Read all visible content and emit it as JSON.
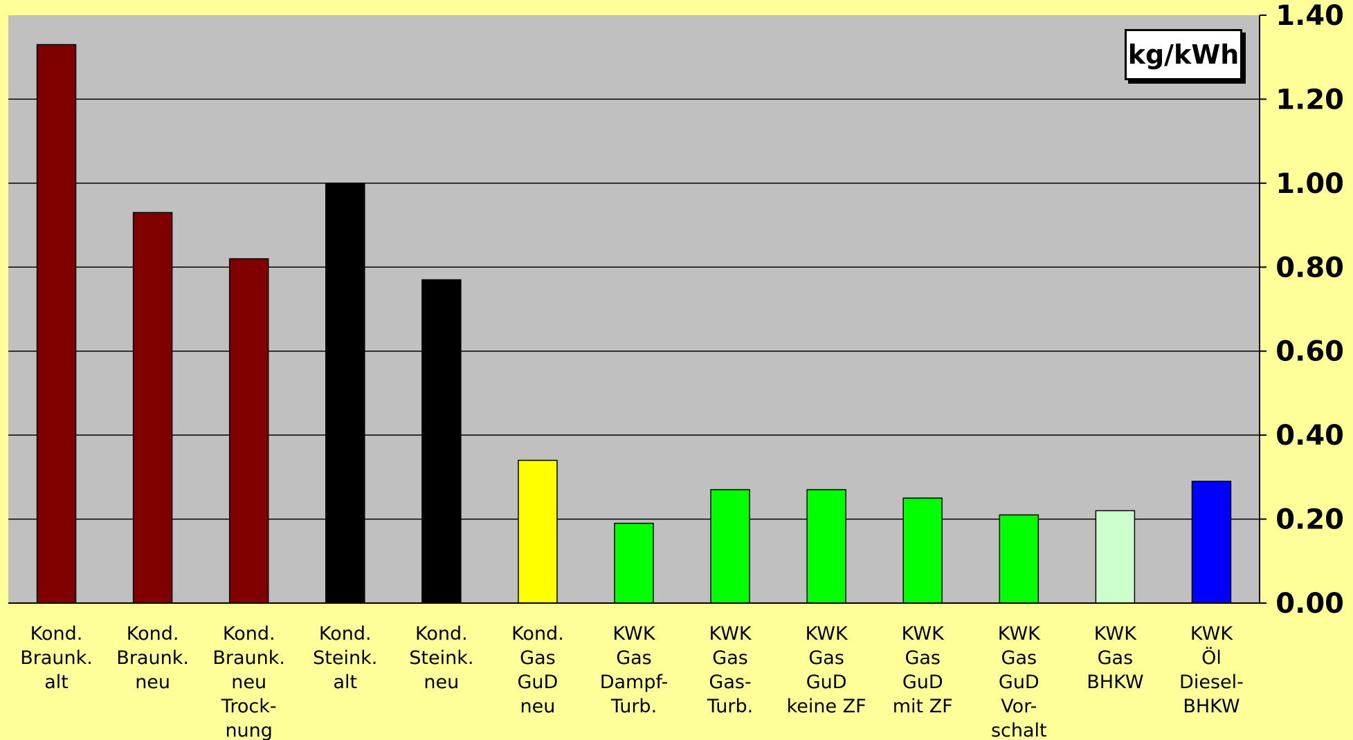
{
  "chart_data": {
    "type": "bar",
    "title": "",
    "xlabel": "",
    "ylabel": "",
    "unit_label": "kg/kWh",
    "ylim": [
      0,
      1.4
    ],
    "yticks": [
      "0.00",
      "0.20",
      "0.40",
      "0.60",
      "0.80",
      "1.00",
      "1.20",
      "1.40"
    ],
    "grid": true,
    "plot_background": "#c0c0c0",
    "page_background": "#ffff99",
    "categories": [
      [
        "Kond.",
        "Braunk.",
        "alt"
      ],
      [
        "Kond.",
        "Braunk.",
        "neu"
      ],
      [
        "Kond.",
        "Braunk.",
        "neu",
        "Trock-",
        "nung"
      ],
      [
        "Kond.",
        "Steink.",
        "alt"
      ],
      [
        "Kond.",
        "Steink.",
        "neu"
      ],
      [
        "Kond.",
        "Gas",
        "GuD",
        "neu"
      ],
      [
        "KWK",
        "Gas",
        "Dampf-",
        "Turb."
      ],
      [
        "KWK",
        "Gas",
        "Gas-",
        "Turb."
      ],
      [
        "KWK",
        "Gas",
        "GuD",
        "keine ZF"
      ],
      [
        "KWK",
        "Gas",
        "GuD",
        "mit ZF"
      ],
      [
        "KWK",
        "Gas",
        "GuD",
        "Vor-",
        "schalt"
      ],
      [
        "KWK",
        "Gas",
        "BHKW"
      ],
      [
        "KWK",
        "Öl",
        "Diesel-",
        "BHKW"
      ]
    ],
    "values": [
      1.33,
      0.93,
      0.82,
      1.0,
      0.77,
      0.34,
      0.19,
      0.27,
      0.27,
      0.25,
      0.21,
      0.22,
      0.29
    ],
    "colors": [
      "#800000",
      "#800000",
      "#800000",
      "#000000",
      "#000000",
      "#ffff00",
      "#00ff00",
      "#00ff00",
      "#00ff00",
      "#00ff00",
      "#00ff00",
      "#ccffcc",
      "#0000ff"
    ]
  }
}
